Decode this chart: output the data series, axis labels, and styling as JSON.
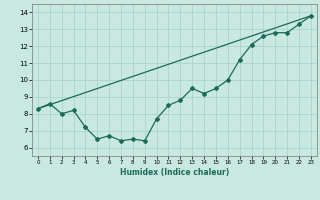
{
  "title": "",
  "xlabel": "Humidex (Indice chaleur)",
  "xlim": [
    -0.5,
    23.5
  ],
  "ylim": [
    5.5,
    14.5
  ],
  "yticks": [
    6,
    7,
    8,
    9,
    10,
    11,
    12,
    13,
    14
  ],
  "xticks": [
    0,
    1,
    2,
    3,
    4,
    5,
    6,
    7,
    8,
    9,
    10,
    11,
    12,
    13,
    14,
    15,
    16,
    17,
    18,
    19,
    20,
    21,
    22,
    23
  ],
  "bg_color": "#c8e8e0",
  "grid_color": "#aad4cc",
  "line_color": "#1a6b5a",
  "line1_x": [
    0,
    1,
    2,
    3,
    4,
    5,
    6,
    7,
    8,
    9,
    10,
    11,
    12,
    13,
    14,
    15,
    16,
    17,
    18,
    19,
    20,
    21,
    22,
    23
  ],
  "line1_y": [
    8.3,
    8.6,
    8.0,
    8.2,
    7.2,
    6.5,
    6.7,
    6.4,
    6.5,
    6.4,
    7.7,
    8.5,
    8.8,
    9.5,
    9.2,
    9.5,
    10.0,
    11.2,
    12.1,
    12.6,
    12.8,
    12.8,
    13.3,
    13.8
  ],
  "line2_x": [
    0,
    23
  ],
  "line2_y": [
    8.3,
    13.8
  ]
}
